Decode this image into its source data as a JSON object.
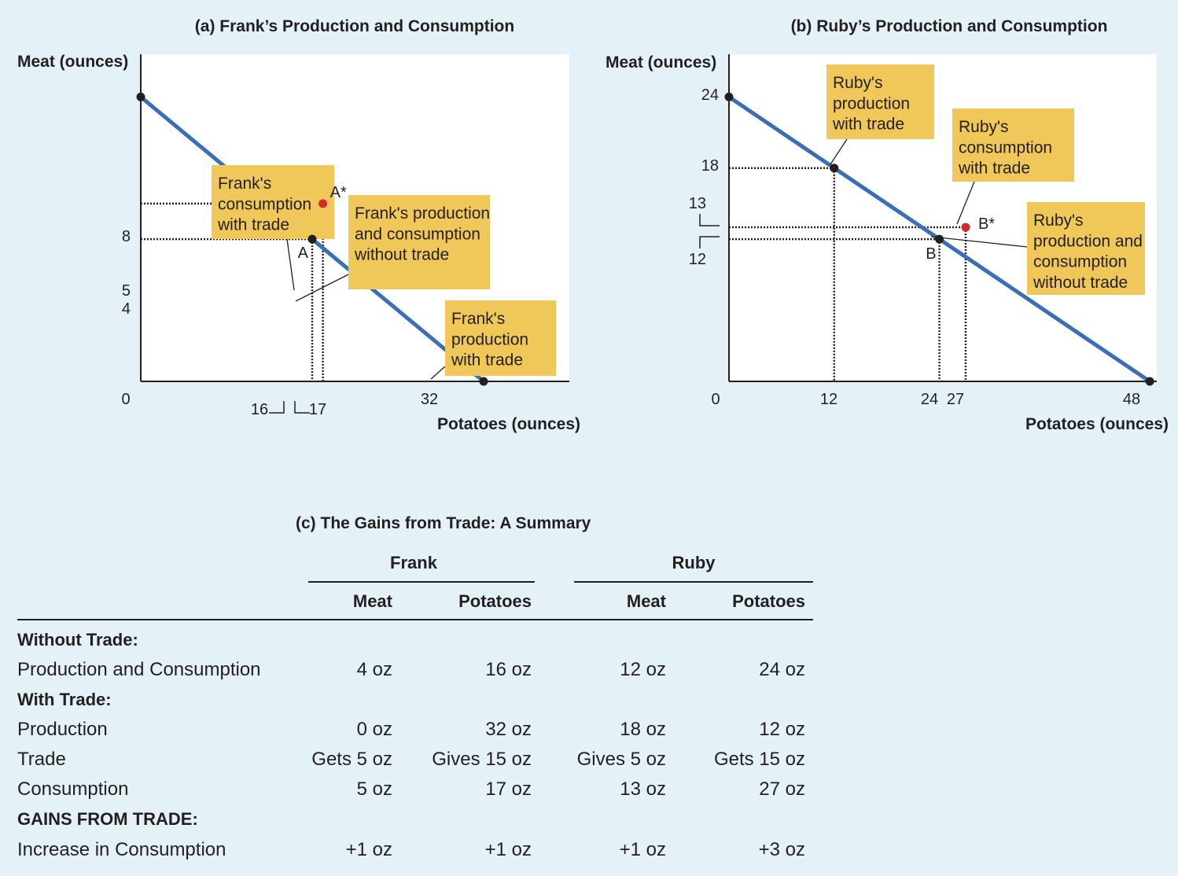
{
  "colors": {
    "background": "#e4f2f7",
    "plot_bg": "#ffffff",
    "line": "#3a6fb5",
    "callout": "#f0c85a",
    "point": "#231f20",
    "trade_point": "#d22b2b"
  },
  "chart_data": [
    {
      "type": "line",
      "title": "(a) Frank’s Production and Consumption",
      "xlabel": "Potatoes (ounces)",
      "ylabel": "Meat (ounces)",
      "xlim": [
        0,
        40
      ],
      "ylim": [
        0,
        9.2
      ],
      "x_ticks": [
        0,
        16,
        17,
        32
      ],
      "y_ticks": [
        8,
        5,
        4
      ],
      "series": [
        {
          "x": [
            0,
            32
          ],
          "y": [
            8,
            0
          ]
        }
      ],
      "points": [
        {
          "label": "",
          "x": 0,
          "y": 8,
          "color": "#231f20"
        },
        {
          "label": "A",
          "x": 16,
          "y": 4,
          "color": "#231f20"
        },
        {
          "label": "A*",
          "x": 17,
          "y": 5,
          "color": "#d22b2b"
        },
        {
          "label": "",
          "x": 32,
          "y": 0,
          "color": "#231f20"
        }
      ],
      "annotations": [
        {
          "text": "Frank's consumption with trade",
          "lines": [
            "Frank's",
            "consumption",
            "with trade"
          ]
        },
        {
          "text": "Frank's production and consumption without trade",
          "lines": [
            "Frank's production",
            "and consumption",
            "without trade"
          ]
        },
        {
          "text": "Frank's production with trade",
          "lines": [
            "Frank's",
            "production",
            "with trade"
          ]
        }
      ]
    },
    {
      "type": "line",
      "title": "(b) Ruby’s Production and Consumption",
      "xlabel": "Potatoes (ounces)",
      "ylabel": "Meat (ounces)",
      "xlim": [
        0,
        48.8
      ],
      "ylim": [
        0,
        27.6
      ],
      "x_ticks": [
        0,
        12,
        24,
        27,
        48
      ],
      "y_ticks": [
        24,
        18,
        13,
        12
      ],
      "series": [
        {
          "x": [
            0,
            48
          ],
          "y": [
            24,
            0
          ]
        }
      ],
      "points": [
        {
          "label": "",
          "x": 0,
          "y": 24,
          "color": "#231f20"
        },
        {
          "label": "",
          "x": 12,
          "y": 18,
          "color": "#231f20"
        },
        {
          "label": "B",
          "x": 24,
          "y": 12,
          "color": "#231f20"
        },
        {
          "label": "B*",
          "x": 27,
          "y": 13,
          "color": "#d22b2b"
        },
        {
          "label": "",
          "x": 48,
          "y": 0,
          "color": "#231f20"
        }
      ],
      "annotations": [
        {
          "text": "Ruby's production with trade",
          "lines": [
            "Ruby's",
            "production",
            "with trade"
          ]
        },
        {
          "text": "Ruby's consumption with trade",
          "lines": [
            "Ruby's",
            "consumption",
            "with trade"
          ]
        },
        {
          "text": "Ruby's production and consumption without trade",
          "lines": [
            "Ruby's",
            "production and",
            "consumption",
            "without trade"
          ]
        }
      ]
    },
    {
      "type": "table",
      "title": "(c) The Gains from Trade: A Summary",
      "groups": [
        "Frank",
        "Ruby"
      ],
      "columns": [
        "Meat",
        "Potatoes",
        "Meat",
        "Potatoes"
      ],
      "sections": [
        {
          "heading": "Without Trade:",
          "rows": [
            {
              "label": "Production and Consumption",
              "values": [
                "4 oz",
                "16 oz",
                "12 oz",
                "24 oz"
              ]
            }
          ]
        },
        {
          "heading": "With Trade:",
          "rows": [
            {
              "label": "Production",
              "values": [
                "0 oz",
                "32 oz",
                "18 oz",
                "12 oz"
              ]
            },
            {
              "label": "Trade",
              "values": [
                "Gets 5 oz",
                "Gives 15 oz",
                "Gives 5 oz",
                "Gets 15 oz"
              ]
            },
            {
              "label": "Consumption",
              "values": [
                "5 oz",
                "17 oz",
                "13 oz",
                "27 oz"
              ]
            }
          ]
        },
        {
          "heading": "GAINS FROM TRADE:",
          "rows": [
            {
              "label": "Increase in Consumption",
              "values": [
                "+1 oz",
                "+1 oz",
                "+1 oz",
                "+3 oz"
              ]
            }
          ]
        }
      ]
    }
  ]
}
